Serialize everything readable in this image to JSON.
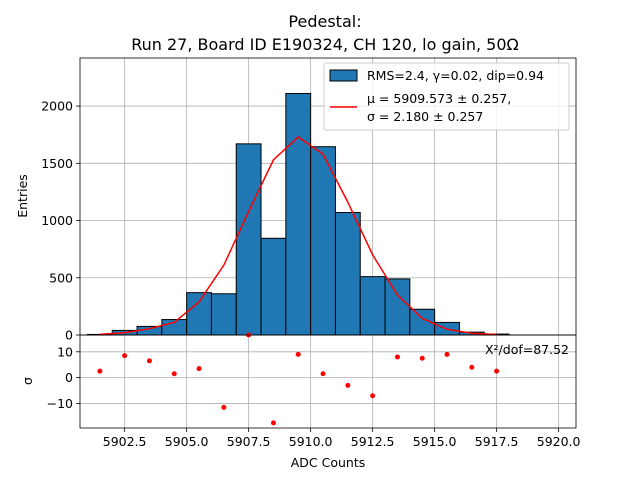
{
  "chart_data": [
    {
      "type": "bar",
      "title_line1": "Pedestal:",
      "title_line2": "Run 27, Board ID E190324, CH 120, lo gain, 50Ω",
      "xlabel": "",
      "ylabel": "Entries",
      "xlim": [
        5900.7,
        5920.7
      ],
      "ylim": [
        0,
        2420
      ],
      "grid": true,
      "bin_width": 1.0,
      "bins": [
        {
          "left": 5901.0,
          "count": 5
        },
        {
          "left": 5902.0,
          "count": 40
        },
        {
          "left": 5903.0,
          "count": 75
        },
        {
          "left": 5904.0,
          "count": 135
        },
        {
          "left": 5905.0,
          "count": 370
        },
        {
          "left": 5906.0,
          "count": 360
        },
        {
          "left": 5907.0,
          "count": 1670
        },
        {
          "left": 5908.0,
          "count": 845
        },
        {
          "left": 5909.0,
          "count": 2110
        },
        {
          "left": 5910.0,
          "count": 1645
        },
        {
          "left": 5911.0,
          "count": 1070
        },
        {
          "left": 5912.0,
          "count": 510
        },
        {
          "left": 5913.0,
          "count": 490
        },
        {
          "left": 5914.0,
          "count": 225
        },
        {
          "left": 5915.0,
          "count": 110
        },
        {
          "left": 5916.0,
          "count": 25
        },
        {
          "left": 5917.0,
          "count": 8
        }
      ],
      "bar_color": "#1f77b4",
      "bar_edge_color": "#000000",
      "fit_curve": {
        "color": "#ff0000",
        "x": [
          5901.5,
          5902.5,
          5903.5,
          5904.5,
          5905.5,
          5906.5,
          5907.5,
          5908.5,
          5909.5,
          5910.5,
          5911.5,
          5912.5,
          5913.5,
          5914.5,
          5915.5,
          5916.5,
          5917.5
        ],
        "y": [
          5,
          20,
          55,
          110,
          290,
          610,
          1080,
          1530,
          1730,
          1580,
          1160,
          700,
          350,
          145,
          50,
          15,
          4
        ]
      },
      "legend": {
        "position": "top-right",
        "hist_label": "RMS=2.4, γ=0.02, dip=0.94",
        "fit_label_line1": "μ = 5909.573 ± 0.257,",
        "fit_label_line2": "σ = 2.180 ± 0.257"
      },
      "yticks": [
        "0",
        "500",
        "1000",
        "1500",
        "2000"
      ],
      "ytick_values": [
        0,
        500,
        1000,
        1500,
        2000
      ]
    },
    {
      "type": "scatter",
      "xlabel": "ADC Counts",
      "ylabel": "σ",
      "xlim": [
        5900.7,
        5920.7
      ],
      "ylim": [
        -19.5,
        16.5
      ],
      "grid": true,
      "point_color": "#ff0000",
      "annotation": "X²/dof=87.52",
      "x": [
        5901.5,
        5902.5,
        5903.5,
        5904.5,
        5905.5,
        5906.5,
        5907.5,
        5908.5,
        5909.5,
        5910.5,
        5911.5,
        5912.5,
        5913.5,
        5914.5,
        5915.5,
        5916.5,
        5917.5
      ],
      "y": [
        2.5,
        8.5,
        6.5,
        1.5,
        3.5,
        -11.5,
        16.5,
        -17.5,
        9.0,
        1.5,
        -3.0,
        -7.0,
        8.0,
        7.5,
        9.0,
        4.0,
        2.5
      ],
      "yticks": [
        "−10",
        "0",
        "10"
      ],
      "ytick_values": [
        -10,
        0,
        10
      ],
      "xticks": [
        "5902.5",
        "5905.0",
        "5907.5",
        "5910.0",
        "5912.5",
        "5915.0",
        "5917.5",
        "5920.0"
      ],
      "xtick_values": [
        5902.5,
        5905.0,
        5907.5,
        5910.0,
        5912.5,
        5915.0,
        5917.5,
        5920.0
      ]
    }
  ]
}
